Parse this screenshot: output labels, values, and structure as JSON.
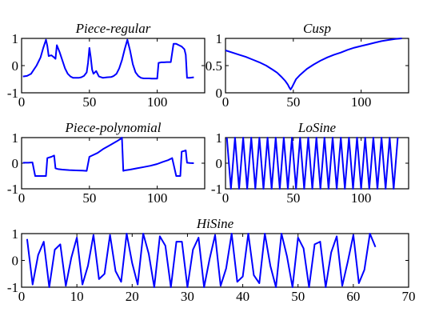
{
  "figure": {
    "line_color": "#0000ff"
  },
  "chart_data": [
    {
      "type": "line",
      "title": "Piece-regular",
      "xlim": [
        0,
        135
      ],
      "ylim": [
        -1,
        1
      ],
      "xticks": [
        0,
        50,
        100
      ],
      "yticks": [
        -1,
        0,
        1
      ],
      "series": [
        {
          "x": [
            1,
            4,
            7,
            9,
            11,
            14,
            16,
            18,
            19,
            20,
            22,
            24,
            25,
            26,
            28,
            30,
            32,
            34,
            36,
            38,
            40,
            42,
            44,
            46,
            48,
            49,
            50,
            51,
            52,
            53,
            55,
            57,
            60,
            63,
            66,
            68,
            70,
            72,
            74,
            76,
            78,
            80,
            82,
            84,
            86,
            88,
            90,
            92,
            94,
            96,
            98,
            100,
            101,
            103,
            104,
            105,
            107,
            110,
            112,
            114,
            116,
            118,
            120,
            121,
            122,
            124,
            127
          ],
          "y": [
            -0.4,
            -0.38,
            -0.3,
            -0.15,
            0.0,
            0.3,
            0.65,
            0.95,
            0.72,
            0.35,
            0.38,
            0.3,
            0.25,
            0.75,
            0.5,
            0.2,
            -0.1,
            -0.3,
            -0.4,
            -0.45,
            -0.45,
            -0.45,
            -0.43,
            -0.38,
            -0.25,
            0.1,
            0.65,
            0.3,
            -0.15,
            -0.3,
            -0.2,
            -0.4,
            -0.45,
            -0.43,
            -0.42,
            -0.38,
            -0.3,
            -0.1,
            0.2,
            0.6,
            0.95,
            0.55,
            0.05,
            -0.25,
            -0.38,
            -0.45,
            -0.47,
            -0.47,
            -0.47,
            -0.48,
            -0.48,
            -0.48,
            0.1,
            0.12,
            0.12,
            0.12,
            0.13,
            0.13,
            0.8,
            0.8,
            0.75,
            0.7,
            0.6,
            0.4,
            -0.45,
            -0.45,
            -0.43
          ]
        }
      ]
    },
    {
      "type": "line",
      "title": "Cusp",
      "xlim": [
        0,
        135
      ],
      "ylim": [
        0,
        1
      ],
      "xticks": [
        0,
        50,
        100
      ],
      "yticks": [
        0,
        0.5,
        1
      ],
      "series": [
        {
          "x": [
            0,
            5,
            10,
            15,
            20,
            25,
            30,
            35,
            38,
            41,
            44,
            46,
            47,
            48,
            49,
            50,
            52,
            55,
            60,
            65,
            70,
            75,
            80,
            85,
            90,
            95,
            100,
            105,
            110,
            115,
            120,
            125,
            130
          ],
          "y": [
            0.78,
            0.74,
            0.7,
            0.66,
            0.61,
            0.56,
            0.5,
            0.42,
            0.37,
            0.3,
            0.22,
            0.15,
            0.1,
            0.06,
            0.1,
            0.15,
            0.25,
            0.33,
            0.44,
            0.52,
            0.59,
            0.65,
            0.7,
            0.74,
            0.79,
            0.83,
            0.86,
            0.89,
            0.92,
            0.95,
            0.97,
            0.99,
            1.0
          ]
        }
      ]
    },
    {
      "type": "line",
      "title": "Piece-polynomial",
      "xlim": [
        0,
        135
      ],
      "ylim": [
        -1,
        1
      ],
      "xticks": [
        0,
        50,
        100
      ],
      "yticks": [
        -1,
        0,
        1
      ],
      "series": [
        {
          "x": [
            1,
            5,
            8,
            10,
            12,
            15,
            18,
            19,
            22,
            24,
            25,
            27,
            30,
            35,
            40,
            45,
            48,
            50,
            52,
            56,
            60,
            65,
            70,
            73,
            74,
            75,
            76,
            80,
            85,
            90,
            95,
            100,
            104,
            108,
            111,
            114,
            116,
            117,
            118,
            120,
            121,
            122,
            124,
            127
          ],
          "y": [
            0.02,
            0.02,
            0.03,
            -0.5,
            -0.5,
            -0.5,
            -0.5,
            0.2,
            0.25,
            0.3,
            -0.2,
            -0.23,
            -0.25,
            -0.27,
            -0.28,
            -0.29,
            -0.3,
            0.25,
            0.3,
            0.4,
            0.55,
            0.7,
            0.85,
            0.95,
            1.0,
            -0.3,
            -0.28,
            -0.25,
            -0.2,
            -0.15,
            -0.1,
            -0.03,
            0.05,
            0.12,
            0.2,
            -0.5,
            -0.5,
            -0.5,
            0.45,
            0.48,
            0.5,
            0.02,
            0.01,
            0.0
          ]
        }
      ]
    },
    {
      "type": "line",
      "title": "LoSine",
      "xlim": [
        0,
        135
      ],
      "ylim": [
        -1,
        1
      ],
      "xticks": [
        0,
        50,
        100
      ],
      "yticks": [
        -1,
        0,
        1
      ],
      "series": [
        {
          "x": [
            1,
            4,
            7,
            10,
            13,
            16,
            19,
            22,
            25,
            28,
            31,
            34,
            37,
            40,
            43,
            46,
            49,
            52,
            55,
            58,
            61,
            64,
            67,
            70,
            73,
            76,
            79,
            82,
            85,
            88,
            91,
            94,
            97,
            100,
            103,
            106,
            109,
            112,
            115,
            118,
            121,
            124,
            127
          ],
          "y": [
            1,
            -1,
            1,
            -1,
            1,
            -1,
            1,
            -1,
            1,
            -1,
            1,
            -1,
            1,
            -1,
            1,
            -1,
            1,
            -1,
            1,
            -1,
            1,
            -1,
            1,
            -1,
            1,
            -1,
            1,
            -1,
            1,
            -1,
            1,
            -1,
            1,
            -1,
            1,
            -1,
            1,
            -1,
            1,
            -1,
            1,
            -1,
            1
          ]
        }
      ]
    },
    {
      "type": "line",
      "title": "HiSine",
      "xlim": [
        0,
        70
      ],
      "ylim": [
        -1,
        1
      ],
      "xticks": [
        0,
        10,
        20,
        30,
        40,
        50,
        60,
        70
      ],
      "yticks": [
        -1,
        0,
        1
      ],
      "series": [
        {
          "x": [
            1,
            2,
            3,
            4,
            5,
            6,
            7,
            8,
            9,
            10,
            11,
            12,
            13,
            14,
            15,
            16,
            17,
            18,
            19,
            20,
            21,
            22,
            23,
            24,
            25,
            26,
            27,
            28,
            29,
            30,
            31,
            32,
            33,
            34,
            35,
            36,
            37,
            38,
            39,
            40,
            41,
            42,
            43,
            44,
            45,
            46,
            47,
            48,
            49,
            50,
            51,
            52,
            53,
            54,
            55,
            56,
            57,
            58,
            59,
            60,
            61,
            62,
            63,
            64
          ],
          "y": [
            0.8,
            -0.9,
            0.2,
            0.7,
            -1.0,
            0.4,
            0.6,
            -0.95,
            0.1,
            0.85,
            -0.9,
            -0.2,
            0.95,
            -0.7,
            -0.5,
            0.95,
            -0.4,
            -0.8,
            1.0,
            -0.1,
            -0.9,
            1.0,
            0.25,
            -1.0,
            0.9,
            0.55,
            -1.0,
            0.7,
            0.7,
            -1.0,
            0.4,
            0.85,
            -1.0,
            0.05,
            0.95,
            -0.95,
            -0.3,
            1.0,
            -0.8,
            -0.6,
            1.0,
            -0.55,
            -0.85,
            1.0,
            -0.2,
            -1.0,
            1.0,
            0.15,
            -1.0,
            0.85,
            0.45,
            -1.0,
            0.6,
            0.7,
            -1.0,
            0.3,
            0.9,
            -0.95,
            -0.05,
            0.95,
            -0.85,
            -0.35,
            1.0,
            0.5
          ]
        }
      ]
    }
  ]
}
